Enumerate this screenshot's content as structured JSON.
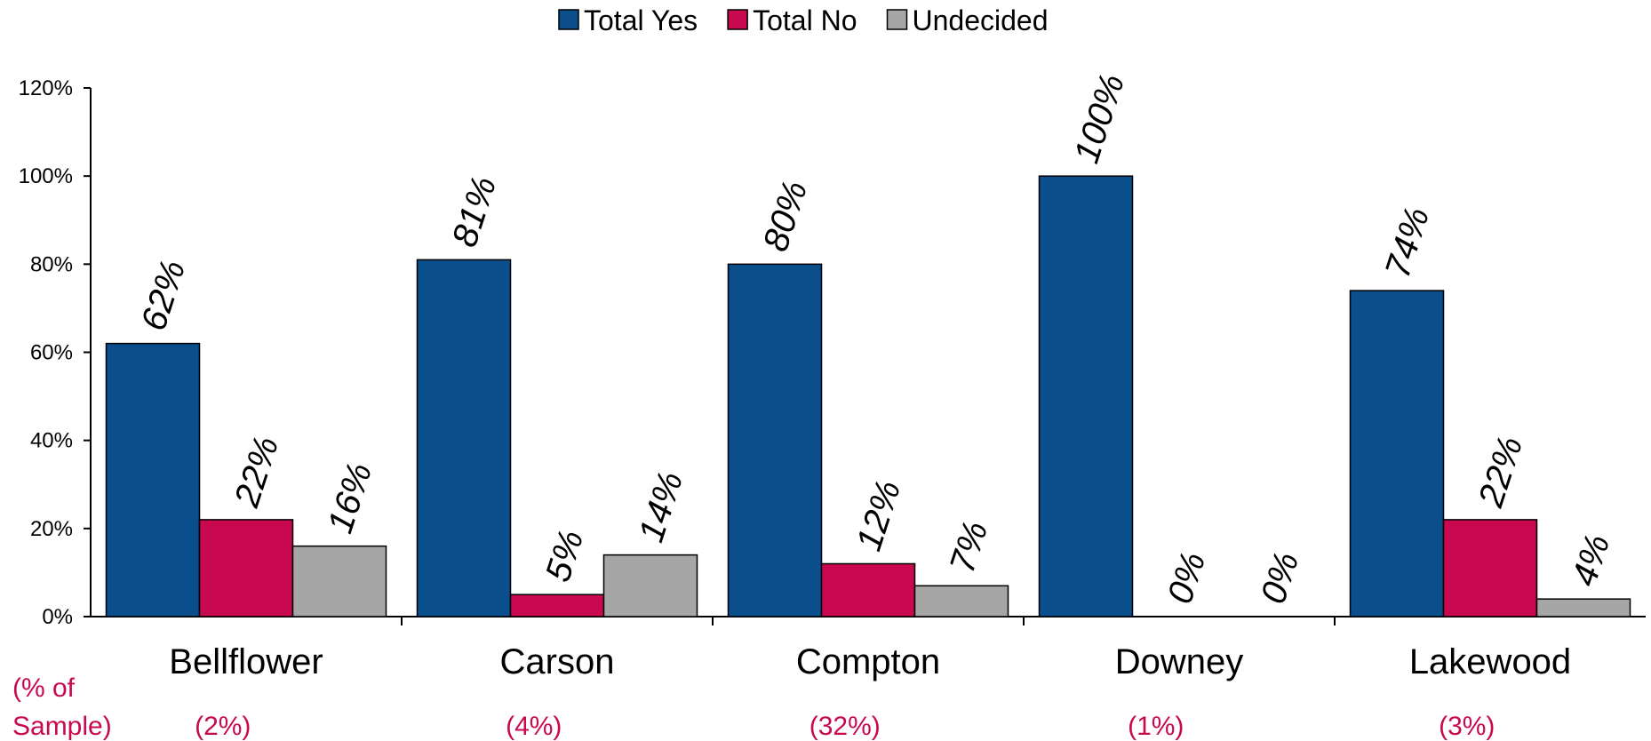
{
  "chart_data": {
    "type": "bar",
    "categories": [
      "Bellflower",
      "Carson",
      "Compton",
      "Downey",
      "Lakewood"
    ],
    "series": [
      {
        "name": "Total Yes",
        "color": "#0B4E8C",
        "values": [
          62,
          81,
          80,
          100,
          74
        ],
        "labels": [
          "62%",
          "81%",
          "80%",
          "100%",
          "74%"
        ]
      },
      {
        "name": "Total No",
        "color": "#C8094F",
        "values": [
          22,
          5,
          12,
          0,
          22
        ],
        "labels": [
          "22%",
          "5%",
          "12%",
          "0%",
          "22%"
        ]
      },
      {
        "name": "Undecided",
        "color": "#A6A6A6",
        "values": [
          16,
          14,
          7,
          0,
          4
        ],
        "labels": [
          "16%",
          "14%",
          "7%",
          "0%",
          "4%"
        ]
      }
    ],
    "ylim": [
      0,
      120
    ],
    "yticks": [
      0,
      20,
      40,
      60,
      80,
      100,
      120
    ],
    "ytick_labels": [
      "0%",
      "20%",
      "40%",
      "60%",
      "80%",
      "100%",
      "120%"
    ],
    "legend_position": "top-center",
    "grid": false
  },
  "sample_row": {
    "label_line1": "(% of",
    "label_line2": "Sample)",
    "values": [
      "(2%)",
      "(4%)",
      "(32%)",
      "(1%)",
      "(3%)"
    ],
    "color": "#C8094F"
  }
}
